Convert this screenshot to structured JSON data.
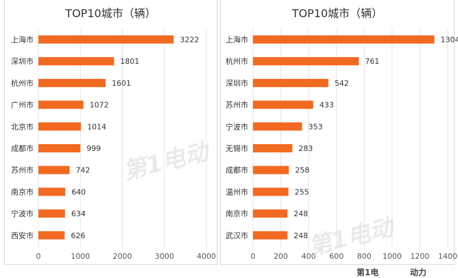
{
  "watermark": {
    "text": "第1电动"
  },
  "footer": {
    "logo_left": "第1电",
    "logo_right": "动力"
  },
  "chart_data": [
    {
      "type": "bar",
      "orientation": "horizontal",
      "title_top": "",
      "title": "TOP10城市（辆）",
      "categories": [
        "上海市",
        "深圳市",
        "杭州市",
        "广州市",
        "北京市",
        "成都市",
        "苏州市",
        "南京市",
        "宁波市",
        "西安市"
      ],
      "values": [
        3222,
        1801,
        1601,
        1072,
        1014,
        999,
        742,
        640,
        634,
        626
      ],
      "xlim": [
        0,
        4000
      ],
      "xticks": [
        "0",
        "1000",
        "2000",
        "3000",
        "4000"
      ],
      "grid": true,
      "color": "#f26a21"
    },
    {
      "type": "bar",
      "orientation": "horizontal",
      "title_top": "",
      "title": "TOP10城市（辆）",
      "categories": [
        "上海市",
        "杭州市",
        "深圳市",
        "苏州市",
        "宁波市",
        "无锡市",
        "成都市",
        "温州市",
        "南京市",
        "武汉市"
      ],
      "values": [
        1304,
        761,
        542,
        433,
        353,
        283,
        258,
        255,
        248,
        248
      ],
      "xlim": [
        0,
        1400
      ],
      "xticks": [
        "0",
        "200",
        "400",
        "600",
        "800",
        "1000",
        "1200",
        "1400"
      ],
      "grid": true,
      "color": "#f26a21"
    }
  ]
}
